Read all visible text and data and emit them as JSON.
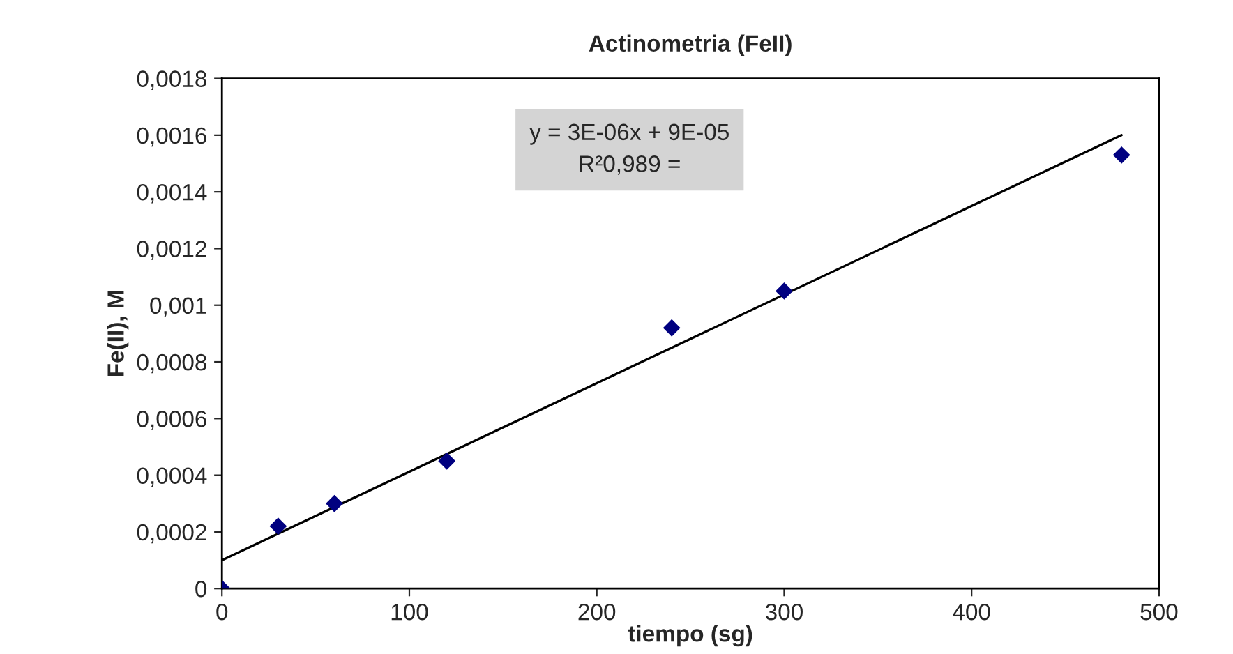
{
  "chart_data": {
    "type": "scatter",
    "title": "Actinometria (FeII)",
    "xlabel": "tiempo (sg)",
    "ylabel": "Fe(II), M",
    "series": [
      {
        "color": "#000080",
        "marker": "diamond",
        "x": [
          0,
          30,
          60,
          120,
          240,
          300,
          480
        ],
        "values": [
          0,
          0.00022,
          0.0003,
          0.00045,
          0.00092,
          0.00105,
          0.00153
        ]
      },
      {
        "type": "line",
        "color": "#000000",
        "marker": "none",
        "line_style": "solid",
        "x": [
          0,
          480
        ],
        "values": [
          0.0001,
          0.0016
        ]
      }
    ],
    "annotations": [
      "y = 3E-06x + 9E-05",
      "R²0,989 ="
    ],
    "xlim": [
      0,
      500
    ],
    "xticks": [
      0,
      100,
      200,
      300,
      400,
      500
    ],
    "ylim": [
      0,
      0.0018
    ],
    "yticks": [
      {
        "value": 0,
        "label": "0"
      },
      {
        "value": 0.0002,
        "label": "0,0002"
      },
      {
        "value": 0.0004,
        "label": "0,0004"
      },
      {
        "value": 0.0006,
        "label": "0,0006"
      },
      {
        "value": 0.0008,
        "label": "0,0008"
      },
      {
        "value": 0.001,
        "label": "0,001"
      },
      {
        "value": 0.0012,
        "label": "0,0012"
      },
      {
        "value": 0.0014,
        "label": "0,0014"
      },
      {
        "value": 0.0016,
        "label": "0,0016"
      },
      {
        "value": 0.0018,
        "label": "0,0018"
      }
    ],
    "grid": false,
    "legend": false
  }
}
